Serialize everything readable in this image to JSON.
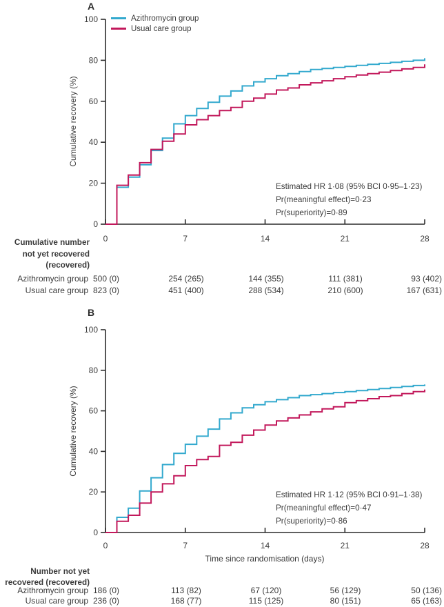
{
  "figure": {
    "panels": [
      {
        "label": "A"
      },
      {
        "label": "B"
      }
    ],
    "legend": [
      {
        "name": "Azithromycin group",
        "color": "#33a9ce"
      },
      {
        "name": "Usual care group",
        "color": "#c2185b"
      }
    ],
    "axis_color": "#2b2b2b",
    "text_color": "#3a3a3a"
  },
  "chart_data": [
    {
      "type": "line",
      "subtype": "step",
      "title": "A",
      "xlabel": "",
      "ylabel": "Cumulative recovery (%)",
      "xlim": [
        0,
        28
      ],
      "ylim": [
        0,
        100
      ],
      "x_ticks": [
        0,
        7,
        14,
        21,
        28
      ],
      "y_ticks": [
        0,
        20,
        40,
        60,
        80,
        100
      ],
      "legend_position": "top-left",
      "grid": false,
      "x": [
        0,
        1,
        2,
        3,
        4,
        5,
        6,
        7,
        8,
        9,
        10,
        11,
        12,
        13,
        14,
        15,
        16,
        17,
        18,
        19,
        20,
        21,
        22,
        23,
        24,
        25,
        26,
        27,
        28
      ],
      "series": [
        {
          "name": "Azithromycin group",
          "color": "#33a9ce",
          "values": [
            0,
            18,
            23,
            29,
            36,
            42,
            49,
            53,
            56.5,
            59.5,
            62.5,
            65,
            67.5,
            69.5,
            71,
            72.5,
            73.5,
            74.5,
            75.5,
            76,
            76.5,
            77,
            77.5,
            78,
            78.5,
            79,
            79.5,
            80,
            81
          ]
        },
        {
          "name": "Usual care group",
          "color": "#c2185b",
          "values": [
            0,
            19,
            24,
            30,
            36.5,
            40.5,
            44,
            48.5,
            51,
            53,
            55.5,
            57,
            60,
            61.5,
            63.5,
            65.5,
            66.5,
            68,
            69,
            70,
            71,
            72,
            72.8,
            73.5,
            74.2,
            75,
            75.8,
            76.5,
            78
          ]
        }
      ],
      "annotation": [
        "Estimated HR 1·08 (95% BCI 0·95–1·23)",
        "Pr(meaningful effect)=0·23",
        "Pr(superiority)=0·89"
      ]
    },
    {
      "type": "line",
      "subtype": "step",
      "title": "B",
      "xlabel": "Time since randomisation (days)",
      "ylabel": "Cumulative recovery (%)",
      "xlim": [
        0,
        28
      ],
      "ylim": [
        0,
        100
      ],
      "x_ticks": [
        0,
        7,
        14,
        21,
        28
      ],
      "y_ticks": [
        0,
        20,
        40,
        60,
        80,
        100
      ],
      "legend_position": "none",
      "grid": false,
      "x": [
        0,
        1,
        2,
        3,
        4,
        5,
        6,
        7,
        8,
        9,
        10,
        11,
        12,
        13,
        14,
        15,
        16,
        17,
        18,
        19,
        20,
        21,
        22,
        23,
        24,
        25,
        26,
        27,
        28
      ],
      "series": [
        {
          "name": "Azithromycin group",
          "color": "#33a9ce",
          "values": [
            0,
            7.5,
            12,
            20.5,
            27,
            33.5,
            39,
            43.5,
            47.5,
            51,
            56,
            59,
            61.5,
            63,
            64.5,
            65.5,
            66.5,
            67.5,
            68,
            68.5,
            69,
            69.5,
            70,
            70.5,
            71,
            71.5,
            72,
            72.5,
            73
          ]
        },
        {
          "name": "Usual care group",
          "color": "#c2185b",
          "values": [
            0,
            5.5,
            8.5,
            14.5,
            20,
            24,
            28,
            33,
            36,
            37.5,
            43,
            44.5,
            48,
            50.5,
            53,
            55,
            56.5,
            58,
            59.5,
            61,
            62,
            64,
            65,
            66,
            67,
            67.5,
            68.5,
            69.5,
            70.5
          ]
        }
      ],
      "annotation": [
        "Estimated HR 1·12 (95% BCI 0·91–1·38)",
        "Pr(meaningful effect)=0·47",
        "Pr(superiority)=0·86"
      ]
    }
  ],
  "tables": {
    "a": {
      "header_lines": [
        "Cumulative number",
        "not yet recovered",
        "(recovered)"
      ],
      "rows": [
        {
          "label": "Azithromycin group",
          "values": [
            "500 (0)",
            "254 (265)",
            "144 (355)",
            "111 (381)",
            "93 (402)"
          ]
        },
        {
          "label": "Usual care group",
          "values": [
            "823 (0)",
            "451 (400)",
            "288 (534)",
            "210 (600)",
            "167 (631)"
          ]
        }
      ]
    },
    "b": {
      "header_lines": [
        "Number not yet",
        "recovered (recovered)"
      ],
      "rows": [
        {
          "label": "Azithromycin group",
          "values": [
            "186 (0)",
            "113 (82)",
            "67 (120)",
            "56 (129)",
            "50 (136)"
          ]
        },
        {
          "label": "Usual care group",
          "values": [
            "236 (0)",
            "168 (77)",
            "115 (125)",
            "80 (151)",
            "65 (163)"
          ]
        }
      ]
    }
  }
}
